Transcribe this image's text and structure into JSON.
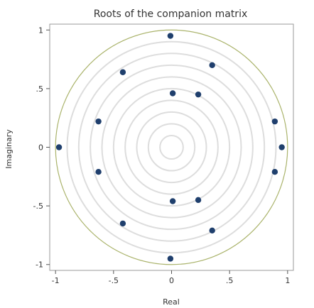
{
  "chart_data": {
    "type": "scatter",
    "title": "Roots of the companion matrix",
    "xlabel": "Real",
    "ylabel": "Imaginary",
    "xlim": [
      -1.05,
      1.05
    ],
    "ylim": [
      -1.05,
      1.05
    ],
    "x_ticks": [
      -1,
      -0.5,
      0,
      0.5,
      1
    ],
    "x_tick_labels": [
      "-1",
      "-.5",
      "0",
      ".5",
      "1"
    ],
    "y_ticks": [
      -1,
      -0.5,
      0,
      0.5,
      1
    ],
    "y_tick_labels": [
      "-1",
      "-.5",
      "0",
      ".5",
      "1"
    ],
    "grid": false,
    "reference_rings": [
      0.1,
      0.2,
      0.3,
      0.4,
      0.5,
      0.6,
      0.7,
      0.8,
      0.9
    ],
    "unit_circle": true,
    "colors": {
      "points": "#1f3f6d",
      "rings": "#dddddd",
      "unit_circle": "#aab36b",
      "frame": "#9a9a9a"
    },
    "series": [
      {
        "points": [
          {
            "x": -0.01,
            "y": 0.95
          },
          {
            "x": 0.35,
            "y": 0.7
          },
          {
            "x": -0.42,
            "y": 0.64
          },
          {
            "x": 0.01,
            "y": 0.46
          },
          {
            "x": 0.23,
            "y": 0.45
          },
          {
            "x": -0.63,
            "y": 0.22
          },
          {
            "x": 0.89,
            "y": 0.22
          },
          {
            "x": -0.97,
            "y": 0.0
          },
          {
            "x": 0.95,
            "y": 0.0
          },
          {
            "x": -0.63,
            "y": -0.21
          },
          {
            "x": 0.89,
            "y": -0.21
          },
          {
            "x": 0.01,
            "y": -0.46
          },
          {
            "x": 0.23,
            "y": -0.45
          },
          {
            "x": -0.42,
            "y": -0.65
          },
          {
            "x": 0.35,
            "y": -0.71
          },
          {
            "x": -0.01,
            "y": -0.95
          }
        ]
      }
    ]
  }
}
